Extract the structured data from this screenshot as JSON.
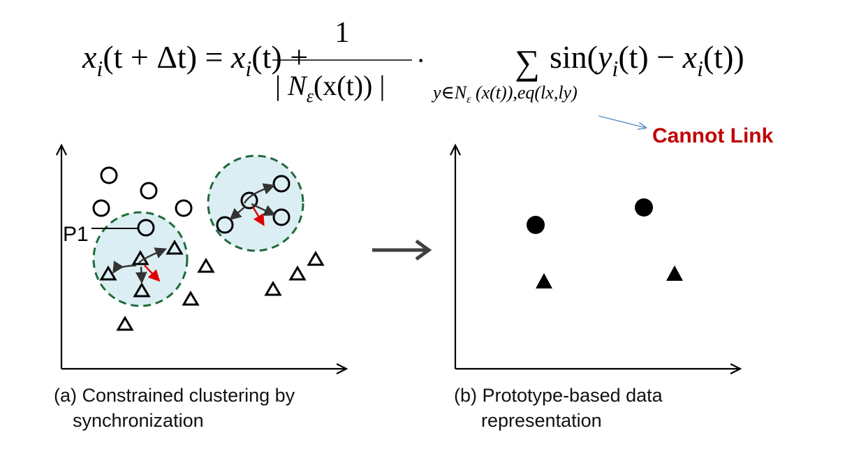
{
  "formula": {
    "lhs_x": "x",
    "lhs_sub": "i",
    "lhs_args": "(t + Δt) = ",
    "rhs_x": "x",
    "rhs_sub": "i",
    "rhs_args": "(t) + ",
    "fraction_numerator": "1",
    "fraction_denominator_open": "| ",
    "fraction_denominator_N": "N",
    "fraction_denominator_eps": "ε",
    "fraction_denominator_close": "(x(t)) |",
    "dot": "·",
    "sum_symbol": "∑",
    "sum_body_pre": "sin(",
    "sum_body_y": "y",
    "sum_body_y_sub": "i",
    "sum_body_mid": "(t) − ",
    "sum_body_x": "x",
    "sum_body_x_sub": "i",
    "sum_body_post": "(t))",
    "sum_sub_pre": "y∈",
    "sum_sub_N": "N",
    "sum_sub_eps": "ε",
    "sum_sub_post": " (x(t)),",
    "sum_sub_eq": "eq(lx,ly)"
  },
  "annotation": {
    "label": "Cannot Link",
    "label_color": "#c00000",
    "arrow_color": "#5b8fc7"
  },
  "panel_a": {
    "point_label": "P1",
    "caption_line1": "(a) Constrained clustering by",
    "caption_line2": "synchronization"
  },
  "panel_b": {
    "caption_line1": "(b) Prototype-based data",
    "caption_line2": "representation"
  },
  "colors": {
    "cluster_fill": "#dbeef3",
    "cluster_border": "#1e6a39",
    "sync_arrow": "#333333",
    "cannot_link_arrow": "#e00000",
    "transition_arrow": "#404040"
  }
}
